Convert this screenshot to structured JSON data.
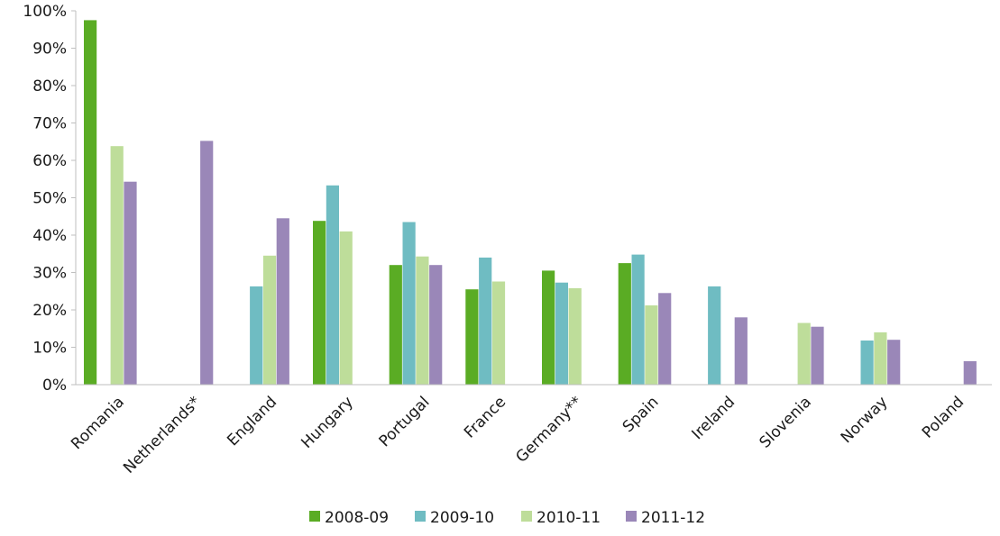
{
  "chart_data": {
    "type": "bar",
    "title": "",
    "xlabel": "",
    "ylabel": "",
    "ylim": [
      0,
      100
    ],
    "y_ticks": [
      "0%",
      "10%",
      "20%",
      "30%",
      "40%",
      "50%",
      "60%",
      "70%",
      "80%",
      "90%",
      "100%"
    ],
    "grid": false,
    "legend_position": "bottom",
    "categories": [
      "Romania",
      "Netherlands*",
      "England",
      "Hungary",
      "Portugal",
      "France",
      "Germany**",
      "Spain",
      "Ireland",
      "Slovenia",
      "Norway",
      "Poland"
    ],
    "series": [
      {
        "name": "2008-09",
        "color": "#5aac24",
        "values": [
          97.5,
          null,
          null,
          43.8,
          32.0,
          25.5,
          30.5,
          32.5,
          null,
          null,
          null,
          null
        ]
      },
      {
        "name": "2009-10",
        "color": "#6fbcc2",
        "values": [
          null,
          null,
          26.3,
          53.3,
          43.5,
          34.0,
          27.3,
          34.8,
          26.3,
          null,
          11.8,
          null
        ]
      },
      {
        "name": "2010-11",
        "color": "#bedd9a",
        "values": [
          63.8,
          null,
          34.5,
          41.0,
          34.3,
          27.6,
          25.8,
          21.2,
          null,
          16.5,
          14.0,
          null
        ]
      },
      {
        "name": "2011-12",
        "color": "#9a87b8",
        "values": [
          54.3,
          65.2,
          44.5,
          null,
          32.0,
          null,
          null,
          24.5,
          18.0,
          15.5,
          12.0,
          6.3
        ]
      }
    ]
  }
}
